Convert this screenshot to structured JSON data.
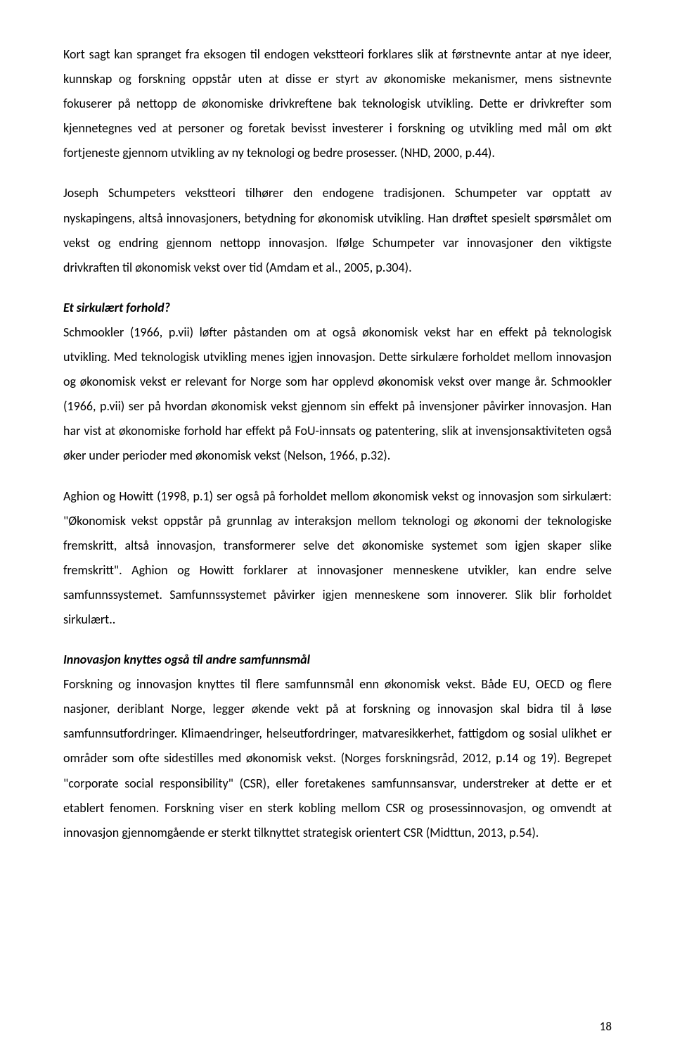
{
  "paragraphs": {
    "p1": "Kort sagt kan spranget fra eksogen til endogen vekstteori forklares slik at førstnevnte antar at nye ideer, kunnskap og forskning oppstår uten at disse er styrt av økonomiske mekanismer, mens sistnevnte fokuserer på nettopp de økonomiske drivkreftene bak teknologisk utvikling. Dette er drivkrefter som kjennetegnes ved at personer og foretak bevisst investerer i forskning og utvikling med mål om økt fortjeneste gjennom utvikling av ny teknologi og bedre prosesser. (NHD, 2000, p.44).",
    "p2": "Joseph Schumpeters vekstteori tilhører den endogene tradisjonen. Schumpeter var opptatt av nyskapingens, altså innovasjoners, betydning for økonomisk utvikling. Han drøftet spesielt spørsmålet om vekst og endring gjennom nettopp innovasjon. Ifølge Schumpeter var innovasjoner den viktigste drivkraften til økonomisk vekst over tid (Amdam et al., 2005, p.304).",
    "heading1": "Et sirkulært forhold?",
    "p3": "Schmookler (1966, p.vii) løfter påstanden om at også økonomisk vekst har en effekt på teknologisk utvikling. Med teknologisk utvikling menes igjen innovasjon. Dette sirkulære forholdet mellom innovasjon og økonomisk vekst er relevant for Norge som har opplevd økonomisk vekst over mange år. Schmookler (1966, p.vii) ser på hvordan økonomisk vekst gjennom sin effekt på invensjoner påvirker innovasjon. Han har vist at økonomiske forhold har effekt på FoU-innsats og patentering, slik at invensjonsaktiviteten også øker under perioder med økonomisk vekst (Nelson, 1966, p.32).",
    "p4": "Aghion og Howitt (1998, p.1) ser også på forholdet mellom økonomisk vekst og innovasjon som sirkulært: \"Økonomisk vekst oppstår på grunnlag av interaksjon mellom teknologi og økonomi der teknologiske fremskritt, altså innovasjon, transformerer selve det økonomiske systemet som igjen skaper slike fremskritt\". Aghion og Howitt forklarer at innovasjoner menneskene utvikler, kan endre selve samfunnssystemet. Samfunnssystemet påvirker igjen menneskene som innoverer. Slik blir forholdet sirkulært..",
    "heading2": "Innovasjon knyttes også til andre samfunnsmål",
    "p5": "Forskning og innovasjon knyttes til flere samfunnsmål enn økonomisk vekst. Både EU, OECD og flere nasjoner, deriblant Norge, legger økende vekt på at forskning og innovasjon skal bidra til å løse samfunnsutfordringer. Klimaendringer, helseutfordringer, matvaresikkerhet, fattigdom og sosial ulikhet er områder som ofte sidestilles med økonomisk vekst. (Norges forskningsråd, 2012, p.14 og 19). Begrepet \"corporate social responsibility\" (CSR), eller foretakenes samfunnsansvar, understreker at dette er et etablert fenomen. Forskning viser en sterk kobling mellom CSR og prosessinnovasjon, og omvendt at innovasjon gjennomgående er sterkt tilknyttet strategisk orientert CSR (Midttun, 2013, p.54)."
  },
  "pageNumber": "18"
}
